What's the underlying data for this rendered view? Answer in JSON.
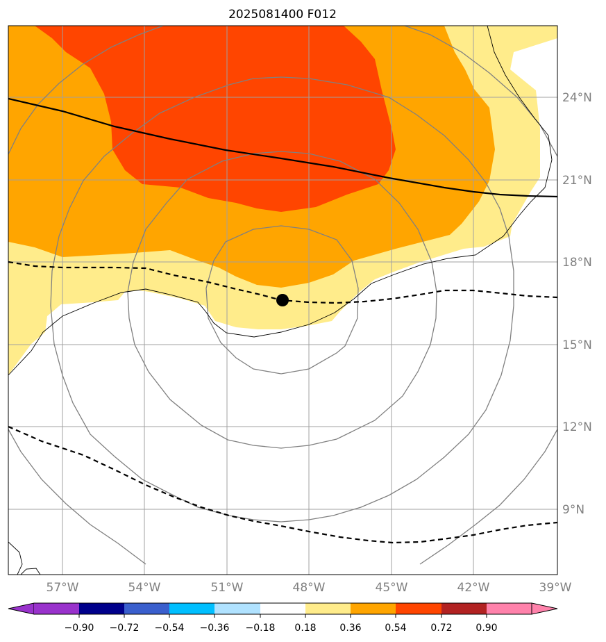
{
  "title": "2025081400 F012",
  "map": {
    "lon_range": [
      -59,
      -39
    ],
    "lat_range": [
      6.6,
      26.5
    ],
    "lat_ticks": [
      {
        "value": 24,
        "label": "24°N"
      },
      {
        "value": 21,
        "label": "21°N"
      },
      {
        "value": 18,
        "label": "18°N"
      },
      {
        "value": 15,
        "label": "15°N"
      },
      {
        "value": 12,
        "label": "12°N"
      },
      {
        "value": 9,
        "label": "9°N"
      }
    ],
    "lon_ticks": [
      {
        "value": -57,
        "label": "57°W"
      },
      {
        "value": -54,
        "label": "54°W"
      },
      {
        "value": -51,
        "label": "51°W"
      },
      {
        "value": -48,
        "label": "48°W"
      },
      {
        "value": -45,
        "label": "45°W"
      },
      {
        "value": -42,
        "label": "42°W"
      },
      {
        "value": -39,
        "label": "39°W"
      }
    ],
    "grid": true,
    "center_marker": {
      "lon": -49.0,
      "lat": 16.6
    },
    "range_rings": true
  },
  "colorbar": {
    "extend": "both",
    "colors": [
      "#9932cc",
      "#00008b",
      "#3a5fcd",
      "#00bfff",
      "#b0e2ff",
      "#ffffff",
      "#ffec8b",
      "#ffa500",
      "#ff4500",
      "#b22222",
      "#ff82ab"
    ],
    "tick_labels": [
      "−0.90",
      "−0.72",
      "−0.54",
      "−0.36",
      "−0.18",
      "0.18",
      "0.36",
      "0.54",
      "0.72",
      "0.90"
    ]
  },
  "fill_colors": {
    "low": "#ffec8b",
    "mid": "#ffa500",
    "high": "#ff4500"
  }
}
